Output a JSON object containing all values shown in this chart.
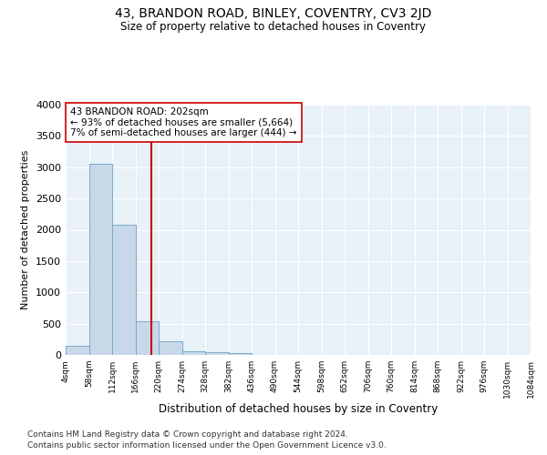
{
  "title": "43, BRANDON ROAD, BINLEY, COVENTRY, CV3 2JD",
  "subtitle": "Size of property relative to detached houses in Coventry",
  "xlabel": "Distribution of detached houses by size in Coventry",
  "ylabel": "Number of detached properties",
  "footer_line1": "Contains HM Land Registry data © Crown copyright and database right 2024.",
  "footer_line2": "Contains public sector information licensed under the Open Government Licence v3.0.",
  "annotation_line1": "43 BRANDON ROAD: 202sqm",
  "annotation_line2": "← 93% of detached houses are smaller (5,664)",
  "annotation_line3": "7% of semi-detached houses are larger (444) →",
  "bar_edges": [
    4,
    58,
    112,
    166,
    220,
    274,
    328,
    382,
    436,
    490,
    544,
    598,
    652,
    706,
    760,
    814,
    868,
    922,
    976,
    1030,
    1084
  ],
  "bar_heights": [
    150,
    3050,
    2075,
    540,
    220,
    65,
    40,
    30,
    0,
    0,
    0,
    0,
    0,
    0,
    0,
    0,
    0,
    0,
    0,
    0
  ],
  "bar_color": "#c8d8e8",
  "bar_edge_color": "#7aaac8",
  "property_line_x": 202,
  "property_line_color": "#cc0000",
  "ylim": [
    0,
    4000
  ],
  "yticks": [
    0,
    500,
    1000,
    1500,
    2000,
    2500,
    3000,
    3500,
    4000
  ],
  "bg_color": "#e8f0f8",
  "grid_color": "#ffffff",
  "annotation_box_color": "#ffffff",
  "annotation_box_edge": "#cc0000",
  "fig_bg_color": "#ffffff"
}
